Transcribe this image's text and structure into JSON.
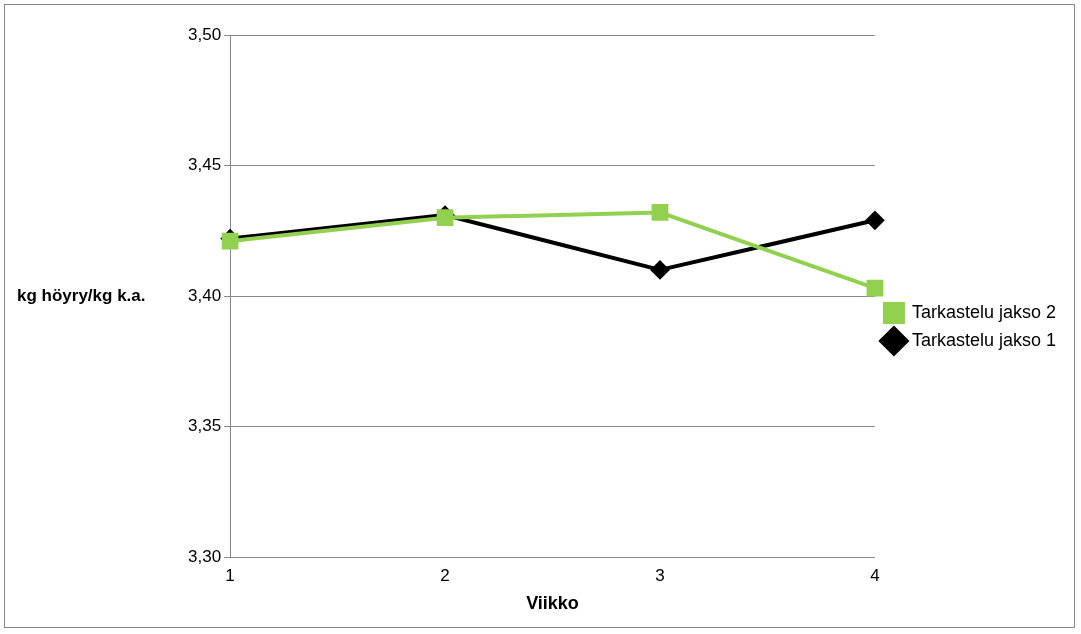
{
  "chart_data": {
    "type": "line",
    "xlabel": "Viikko",
    "ylabel": "kg höyry/kg k.a.",
    "categories": [
      "1",
      "2",
      "3",
      "4"
    ],
    "series": [
      {
        "name": "Tarkastelu jakso 1",
        "color": "#000000",
        "marker": "diamond",
        "values": [
          3.422,
          3.431,
          3.41,
          3.429
        ]
      },
      {
        "name": "Tarkastelu jakso 2",
        "color": "#92d050",
        "marker": "square",
        "values": [
          3.421,
          3.43,
          3.432,
          3.403
        ]
      }
    ],
    "ylim": [
      3.3,
      3.5
    ],
    "yticks": [
      {
        "value": 3.3,
        "label": "3,30"
      },
      {
        "value": 3.35,
        "label": "3,35"
      },
      {
        "value": 3.4,
        "label": "3,40"
      },
      {
        "value": 3.45,
        "label": "3,45"
      },
      {
        "value": 3.5,
        "label": "3,50"
      }
    ],
    "grid": "y",
    "legend": "right",
    "line_style": "solid"
  }
}
